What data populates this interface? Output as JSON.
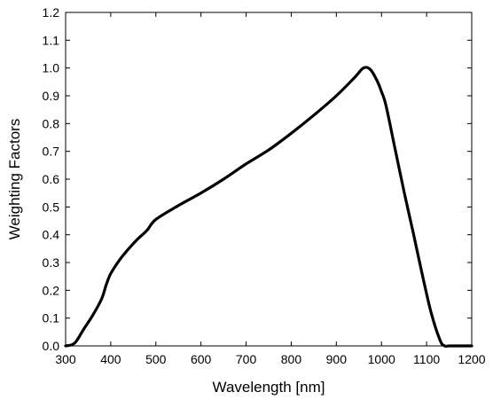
{
  "chart_data": {
    "type": "line",
    "title": "",
    "xlabel": "Wavelength [nm]",
    "ylabel": "Weighting Factors",
    "xlim": [
      300,
      1200
    ],
    "ylim": [
      0.0,
      1.2
    ],
    "x_ticks": [
      "300",
      "400",
      "500",
      "600",
      "700",
      "800",
      "900",
      "1000",
      "1100",
      "1200"
    ],
    "y_ticks": [
      "0.0",
      "0.1",
      "0.2",
      "0.3",
      "0.4",
      "0.5",
      "0.6",
      "0.7",
      "0.8",
      "0.9",
      "1.0",
      "1.1",
      "1.2"
    ],
    "grid": false,
    "legend": "none",
    "line_color": "#000000",
    "series": [
      {
        "x": [
          300,
          320,
          340,
          360,
          380,
          390,
          400,
          420,
          440,
          460,
          480,
          500,
          550,
          600,
          650,
          700,
          750,
          800,
          850,
          900,
          940,
          960,
          975,
          990,
          1000,
          1010,
          1030,
          1050,
          1070,
          1090,
          1110,
          1130,
          1140,
          1150,
          1160,
          1200
        ],
        "y": [
          0.0,
          0.01,
          0.06,
          0.11,
          0.17,
          0.22,
          0.26,
          0.31,
          0.35,
          0.385,
          0.415,
          0.455,
          0.505,
          0.55,
          0.6,
          0.655,
          0.705,
          0.765,
          0.83,
          0.9,
          0.965,
          1.0,
          0.995,
          0.955,
          0.915,
          0.865,
          0.71,
          0.555,
          0.41,
          0.26,
          0.12,
          0.02,
          0.0,
          0.0,
          0.0,
          0.0
        ]
      }
    ]
  }
}
